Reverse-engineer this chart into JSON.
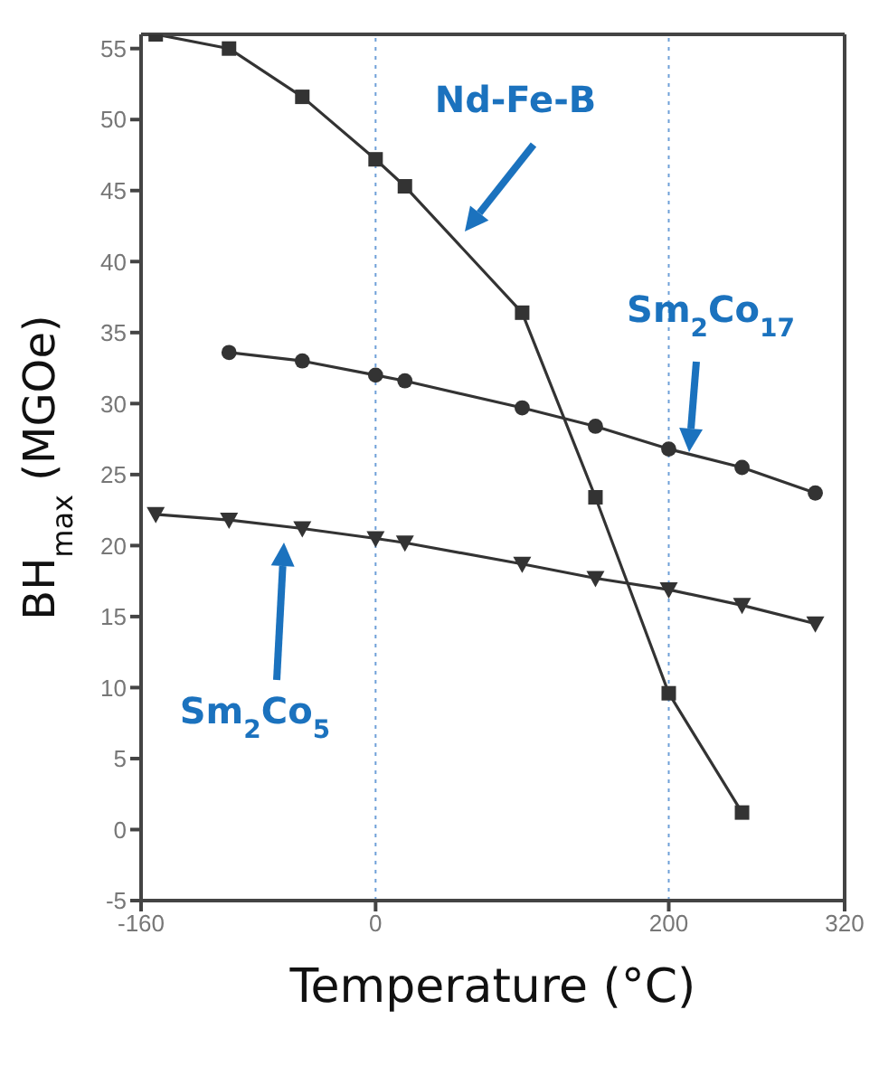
{
  "chart_data": {
    "type": "line",
    "xlabel": "Temperature (°C)",
    "ylabel": "BH$_{max}$ (MGOe)",
    "xlim": [
      -160,
      320
    ],
    "xticks": [
      -160,
      0,
      200,
      320
    ],
    "ylim": [
      -5,
      56
    ],
    "yticks": [
      -5,
      0,
      5,
      10,
      15,
      20,
      25,
      30,
      35,
      40,
      45,
      50,
      55
    ],
    "grid": false,
    "legend": false,
    "line_style": "solid",
    "ref_lines": [
      {
        "axis": "x",
        "value": 0,
        "color": "#6fa0d8",
        "line_style": "dotted"
      },
      {
        "axis": "x",
        "value": 200,
        "color": "#6fa0d8",
        "line_style": "dotted"
      }
    ],
    "series": [
      {
        "color": "#333333",
        "marker": "square",
        "x": [
          -150,
          -100,
          -50,
          0,
          20,
          100,
          150,
          200,
          250
        ],
        "values": [
          56,
          55,
          51.6,
          47.2,
          45.3,
          36.4,
          23.4,
          9.6,
          1.2
        ]
      },
      {
        "color": "#333333",
        "marker": "circle",
        "x": [
          -100,
          -50,
          0,
          20,
          100,
          150,
          200,
          250,
          300
        ],
        "values": [
          33.6,
          33,
          32,
          31.6,
          29.7,
          28.4,
          26.8,
          25.5,
          23.7
        ]
      },
      {
        "color": "#333333",
        "marker": "triangle",
        "x": [
          -150,
          -100,
          -50,
          0,
          20,
          100,
          150,
          200,
          250,
          300
        ],
        "values": [
          22.2,
          21.8,
          21.2,
          20.5,
          20.2,
          18.7,
          17.7,
          16.9,
          15.8,
          14.5
        ]
      }
    ],
    "annotations": [
      "Nd-Fe-B",
      "Sm$_{2}$Co$_{17}$",
      "Sm$_{2}$Co$_{5}$"
    ]
  }
}
